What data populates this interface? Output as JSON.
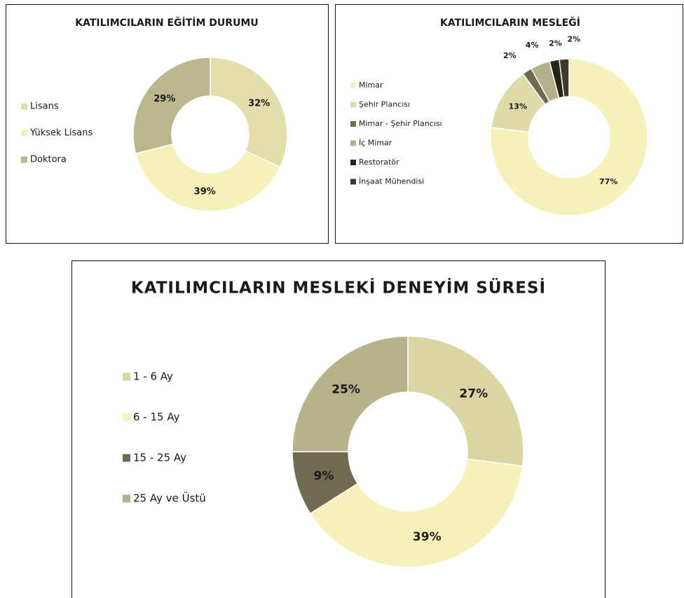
{
  "chart_data": [
    {
      "type": "donut",
      "title": "KATILIMCILARIN EĞİTİM DURUMU",
      "categories": [
        "Lisans",
        "Yüksek Lisans",
        "Doktora"
      ],
      "values": [
        32,
        39,
        29
      ],
      "value_labels": [
        "32%",
        "39%",
        "29%"
      ],
      "colors": [
        "#e2ddab",
        "#f6f0bb",
        "#bab68e"
      ]
    },
    {
      "type": "donut",
      "title": "KATILIMCILARIN MESLEĞİ",
      "categories": [
        "Mimar",
        "Şehir Plancısı",
        "Mimar - Şehir Plancısı",
        "İç Mimar",
        "Restoratör",
        "İnşaat Mühendisi"
      ],
      "values": [
        77,
        13,
        2,
        4,
        2,
        2
      ],
      "value_labels": [
        "77%",
        "13%",
        "2%",
        "4%",
        "2%",
        "2%"
      ],
      "colors": [
        "#f6f0bb",
        "#dedaa9",
        "#6e6b50",
        "#b3b08a",
        "#252519",
        "#3c3a29"
      ]
    },
    {
      "type": "donut",
      "title": "KATILIMCILARIN MESLEKİ DENEYİM SÜRESİ",
      "categories": [
        "1 - 6 Ay",
        "6 - 15 Ay",
        "15 - 25 Ay",
        "25 Ay ve Üstü"
      ],
      "values": [
        27,
        39,
        9,
        25
      ],
      "value_labels": [
        "27%",
        "39%",
        "9%",
        "25%"
      ],
      "colors": [
        "#dad6a2",
        "#f6f0bb",
        "#6e6b50",
        "#b6b28a"
      ]
    }
  ]
}
